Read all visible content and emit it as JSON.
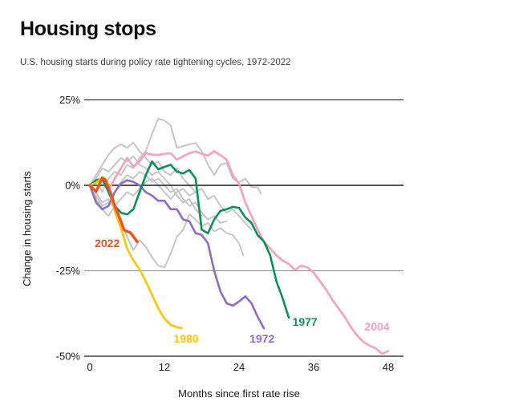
{
  "header": {
    "title": "Housing stops",
    "subtitle": "U.S. housing starts during policy rate tightening cycles, 1972-2022"
  },
  "chart_data": {
    "type": "line",
    "title": "Housing stops",
    "subtitle": "U.S. housing starts during policy rate tightening cycles, 1972-2022",
    "xlabel": "Months since first rate rise",
    "ylabel": "Change in housing starts",
    "xlim": [
      0,
      48.5
    ],
    "ylim": [
      -52,
      27
    ],
    "grid": "horizontal",
    "x_ticks": [
      0,
      12,
      24,
      36,
      48
    ],
    "y_ticks": [
      {
        "label": "25%",
        "value": 25
      },
      {
        "label": "0%",
        "value": 0
      },
      {
        "label": "-25%",
        "value": -25
      },
      {
        "label": "-50%",
        "value": -50
      }
    ],
    "colors": {
      "y2022": "#f1511e",
      "y1980": "#fdc500",
      "y1972": "#8f6cc4",
      "y1977": "#0b9156",
      "y2004": "#f79fc0",
      "other": "#c6c6c6",
      "axis": "#1a1a1a",
      "minor_grid": "#8c8c8c"
    },
    "series": [
      {
        "name": "unlabeled-cycle-1",
        "color": "#c6c6c6",
        "width": 2,
        "label": null,
        "points": [
          [
            0,
            0
          ],
          [
            1,
            2
          ],
          [
            2,
            -2
          ],
          [
            3,
            2
          ],
          [
            4,
            4
          ],
          [
            5,
            3
          ],
          [
            6,
            6
          ],
          [
            7,
            5
          ],
          [
            8,
            8
          ],
          [
            9,
            10
          ],
          [
            10,
            15
          ],
          [
            11,
            19.5
          ],
          [
            12,
            19
          ],
          [
            13,
            17.5
          ],
          [
            14,
            11
          ],
          [
            15,
            11.5
          ],
          [
            16,
            12
          ],
          [
            17,
            12.4
          ],
          [
            18,
            10
          ],
          [
            19,
            6
          ],
          [
            20,
            3
          ],
          [
            21,
            6
          ],
          [
            22,
            6.5
          ],
          [
            23,
            2
          ],
          [
            24,
            0.8
          ],
          [
            25,
            2
          ],
          [
            26,
            -0.5
          ],
          [
            27,
            -0.6
          ],
          [
            27.5,
            -2.3
          ]
        ]
      },
      {
        "name": "unlabeled-cycle-2",
        "color": "#c6c6c6",
        "width": 2,
        "label": null,
        "points": [
          [
            0,
            0
          ],
          [
            1,
            -2
          ],
          [
            2,
            -5
          ],
          [
            3,
            -4
          ],
          [
            4,
            -7
          ],
          [
            5,
            -11
          ],
          [
            6,
            -15
          ],
          [
            7,
            -19
          ],
          [
            8,
            -16
          ],
          [
            9,
            -18
          ],
          [
            10,
            -21
          ],
          [
            11,
            -23.5
          ],
          [
            12,
            -24
          ],
          [
            13,
            -20
          ],
          [
            14,
            -15
          ],
          [
            15,
            -13
          ],
          [
            16,
            -8.5
          ],
          [
            17,
            -10
          ],
          [
            18,
            -12
          ],
          [
            19,
            -11
          ],
          [
            20,
            -13.5
          ],
          [
            21,
            -12.5
          ],
          [
            22,
            -14
          ],
          [
            23,
            -14.5
          ],
          [
            24,
            -17
          ],
          [
            24.7,
            -20.5
          ]
        ]
      },
      {
        "name": "unlabeled-cycle-3",
        "color": "#c6c6c6",
        "width": 2,
        "label": null,
        "points": [
          [
            0,
            0
          ],
          [
            1,
            3
          ],
          [
            2,
            6
          ],
          [
            3,
            9
          ],
          [
            4,
            11
          ],
          [
            5,
            12
          ],
          [
            6,
            11
          ],
          [
            7,
            12.5
          ],
          [
            8,
            10
          ],
          [
            9,
            8
          ],
          [
            10,
            6
          ],
          [
            11,
            7
          ],
          [
            12,
            4
          ],
          [
            13,
            3
          ],
          [
            14,
            5
          ],
          [
            15,
            2
          ],
          [
            16,
            0
          ],
          [
            17,
            -2
          ],
          [
            18,
            -1
          ],
          [
            19,
            -4
          ],
          [
            20,
            -3
          ],
          [
            21,
            -6
          ],
          [
            22,
            -8
          ],
          [
            23,
            -7
          ],
          [
            24,
            -9
          ],
          [
            25,
            -11
          ],
          [
            26,
            -13
          ]
        ]
      },
      {
        "name": "unlabeled-cycle-4",
        "color": "#c6c6c6",
        "width": 2,
        "label": null,
        "points": [
          [
            0,
            0
          ],
          [
            1,
            -3
          ],
          [
            2,
            -6
          ],
          [
            3,
            -5
          ],
          [
            4,
            -2
          ],
          [
            5,
            1
          ],
          [
            6,
            3
          ],
          [
            7,
            2
          ],
          [
            8,
            4
          ],
          [
            9,
            3
          ],
          [
            10,
            1
          ],
          [
            11,
            2
          ],
          [
            12,
            0
          ],
          [
            13,
            -2
          ],
          [
            14,
            -1
          ],
          [
            15,
            -4
          ],
          [
            16,
            -6
          ],
          [
            17,
            -5
          ],
          [
            18,
            -8
          ],
          [
            19,
            -10
          ],
          [
            20,
            -9
          ],
          [
            21,
            -11
          ],
          [
            22,
            -10.5
          ]
        ]
      },
      {
        "name": "unlabeled-cycle-5",
        "color": "#c6c6c6",
        "width": 2,
        "label": null,
        "points": [
          [
            0,
            0
          ],
          [
            1,
            2
          ],
          [
            2,
            5
          ],
          [
            3,
            4
          ],
          [
            4,
            6
          ],
          [
            5,
            8
          ],
          [
            6,
            7
          ],
          [
            7,
            8.5
          ],
          [
            8,
            6
          ],
          [
            9,
            5
          ],
          [
            10,
            3
          ],
          [
            11,
            4
          ],
          [
            12,
            2
          ],
          [
            13,
            0
          ],
          [
            14,
            -3
          ],
          [
            15,
            -5
          ],
          [
            16,
            -4
          ],
          [
            17,
            -7
          ],
          [
            18,
            -9
          ]
        ]
      },
      {
        "name": "unlabeled-cycle-6",
        "color": "#c6c6c6",
        "width": 2,
        "label": null,
        "points": [
          [
            0,
            0
          ],
          [
            1,
            -4
          ],
          [
            2,
            -7
          ],
          [
            3,
            -9
          ],
          [
            4,
            -6
          ],
          [
            5,
            -4
          ],
          [
            6,
            -2
          ],
          [
            7,
            -3
          ],
          [
            8,
            -1
          ],
          [
            9,
            1
          ],
          [
            10,
            2
          ],
          [
            11,
            0
          ],
          [
            12,
            -2
          ],
          [
            13,
            -4
          ],
          [
            14,
            -2
          ],
          [
            15,
            -1
          ],
          [
            16,
            -3
          ],
          [
            17,
            -2
          ]
        ]
      },
      {
        "name": "2004",
        "color": "#f79fc0",
        "width": 2.6,
        "label": {
          "text": "2004",
          "x": 46.2,
          "y": -41.3
        },
        "points": [
          [
            0,
            0
          ],
          [
            1,
            1
          ],
          [
            2,
            1.5
          ],
          [
            3,
            -1.5
          ],
          [
            4,
            2
          ],
          [
            5,
            5
          ],
          [
            6,
            8
          ],
          [
            7,
            5.5
          ],
          [
            8,
            7
          ],
          [
            9,
            9.4
          ],
          [
            10,
            9
          ],
          [
            11,
            8.9
          ],
          [
            12,
            9.2
          ],
          [
            13,
            9.4
          ],
          [
            14,
            7.5
          ],
          [
            15,
            8.5
          ],
          [
            16,
            9.4
          ],
          [
            17,
            9.9
          ],
          [
            18,
            9.2
          ],
          [
            19,
            8.7
          ],
          [
            20,
            10
          ],
          [
            21,
            8.8
          ],
          [
            22,
            7.5
          ],
          [
            23,
            3
          ],
          [
            24,
            0.5
          ],
          [
            25,
            -5
          ],
          [
            26,
            -9
          ],
          [
            27,
            -13
          ],
          [
            28,
            -16.5
          ],
          [
            29,
            -18.5
          ],
          [
            30,
            -20.5
          ],
          [
            31,
            -22
          ],
          [
            32,
            -23
          ],
          [
            33,
            -24.8
          ],
          [
            34,
            -23.5
          ],
          [
            35,
            -24
          ],
          [
            36,
            -25.5
          ],
          [
            37,
            -28
          ],
          [
            38,
            -30.5
          ],
          [
            39,
            -33.5
          ],
          [
            40,
            -36
          ],
          [
            41,
            -38.5
          ],
          [
            42,
            -41.5
          ],
          [
            43,
            -44
          ],
          [
            44,
            -45.8
          ],
          [
            45,
            -46.9
          ],
          [
            46,
            -47.7
          ],
          [
            47,
            -49.3
          ],
          [
            48,
            -48.5
          ]
        ]
      },
      {
        "name": "1972",
        "color": "#8f6cc4",
        "width": 2.6,
        "label": {
          "text": "1972",
          "x": 27.7,
          "y": -44.8
        },
        "points": [
          [
            0,
            0
          ],
          [
            1,
            -5
          ],
          [
            2,
            -7
          ],
          [
            3,
            -6
          ],
          [
            4,
            -2
          ],
          [
            5,
            0.5
          ],
          [
            6,
            1.5
          ],
          [
            7,
            1
          ],
          [
            8,
            0
          ],
          [
            9,
            -2
          ],
          [
            10,
            -3
          ],
          [
            11,
            -4.5
          ],
          [
            12,
            -4.5
          ],
          [
            13,
            -7
          ],
          [
            14,
            -7
          ],
          [
            15,
            -10
          ],
          [
            16,
            -10.5
          ],
          [
            17,
            -14
          ],
          [
            18,
            -14.5
          ],
          [
            19,
            -17
          ],
          [
            20,
            -25
          ],
          [
            21,
            -31
          ],
          [
            22,
            -34.5
          ],
          [
            23,
            -35.2
          ],
          [
            24,
            -34
          ],
          [
            25,
            -32.5
          ],
          [
            26,
            -34.5
          ],
          [
            27,
            -38.5
          ],
          [
            28,
            -41.8
          ]
        ]
      },
      {
        "name": "1977",
        "color": "#0b9156",
        "width": 2.6,
        "label": {
          "text": "1977",
          "x": 34.6,
          "y": -39.9
        },
        "points": [
          [
            0,
            0
          ],
          [
            1,
            1.5
          ],
          [
            2,
            2
          ],
          [
            3,
            -2
          ],
          [
            4,
            -6
          ],
          [
            5,
            -8
          ],
          [
            6,
            -8.5
          ],
          [
            7,
            -7
          ],
          [
            8,
            -2
          ],
          [
            9,
            3
          ],
          [
            10,
            7
          ],
          [
            11,
            4.7
          ],
          [
            12,
            5.4
          ],
          [
            13,
            6
          ],
          [
            14,
            4
          ],
          [
            15,
            3.5
          ],
          [
            16,
            4.5
          ],
          [
            17,
            2
          ],
          [
            18,
            -13
          ],
          [
            19,
            -14
          ],
          [
            20,
            -10
          ],
          [
            21,
            -7.5
          ],
          [
            22,
            -7
          ],
          [
            23,
            -6.3
          ],
          [
            24,
            -6.6
          ],
          [
            25,
            -9.4
          ],
          [
            26,
            -11
          ],
          [
            27,
            -14.6
          ],
          [
            28,
            -16.4
          ],
          [
            29,
            -20.4
          ],
          [
            30,
            -28
          ],
          [
            31,
            -33
          ],
          [
            32,
            -38.7
          ]
        ]
      },
      {
        "name": "1980",
        "color": "#fdc500",
        "width": 2.6,
        "label": {
          "text": "1980",
          "x": 15.5,
          "y": -44.8
        },
        "points": [
          [
            0,
            0
          ],
          [
            1,
            0.8
          ],
          [
            2,
            2.3
          ],
          [
            2.5,
            2
          ],
          [
            3,
            0
          ],
          [
            4,
            -7.5
          ],
          [
            5,
            -12.5
          ],
          [
            6,
            -18.5
          ],
          [
            7,
            -22
          ],
          [
            8,
            -24.5
          ],
          [
            9,
            -28.2
          ],
          [
            10,
            -32
          ],
          [
            11,
            -36
          ],
          [
            12,
            -39
          ],
          [
            13,
            -40.8
          ],
          [
            14,
            -41.5
          ],
          [
            14.8,
            -41.8
          ]
        ]
      },
      {
        "name": "2022",
        "color": "#f1511e",
        "width": 3.4,
        "label": {
          "text": "2022",
          "x": 2.8,
          "y": -16.9
        },
        "points": [
          [
            0,
            0
          ],
          [
            0.5,
            -1
          ],
          [
            1,
            -1.8
          ],
          [
            2,
            2.2
          ],
          [
            2.5,
            1.5
          ],
          [
            3,
            -0.8
          ],
          [
            3.5,
            -3
          ],
          [
            4,
            -6
          ],
          [
            5,
            -10.5
          ],
          [
            5.5,
            -13
          ],
          [
            6,
            -13.5
          ],
          [
            6.5,
            -13.8
          ],
          [
            7,
            -15
          ],
          [
            7.6,
            -16.5
          ]
        ]
      }
    ]
  }
}
